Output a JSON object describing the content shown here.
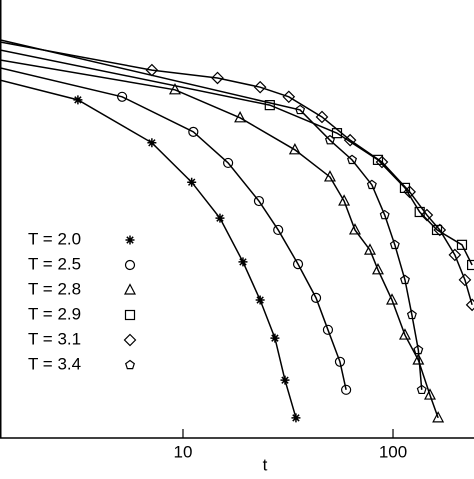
{
  "chart_data": {
    "type": "line",
    "x_label": "t",
    "xscale": "log",
    "xlim": [
      1.345,
      243
    ],
    "xticks": [
      10,
      100
    ],
    "ylim": [
      0,
      1
    ],
    "legend": "left",
    "series": [
      {
        "name": "T = 2.0",
        "marker": "star",
        "color": "#000000",
        "x": [
          1.345,
          3.16,
          7.11,
          11.0,
          15.0,
          19.3,
          23.3,
          27.4,
          30.6,
          34.5
        ],
        "values": [
          0.817,
          0.772,
          0.674,
          0.584,
          0.502,
          0.402,
          0.315,
          0.228,
          0.132,
          0.046
        ]
      },
      {
        "name": "T = 2.5",
        "marker": "circle",
        "color": "#000000",
        "x": [
          1.345,
          5.13,
          11.2,
          16.4,
          23.0,
          28.4,
          35.3,
          43.0,
          49.0,
          55.9,
          59.8
        ],
        "values": [
          0.845,
          0.779,
          0.699,
          0.628,
          0.541,
          0.475,
          0.397,
          0.32,
          0.247,
          0.174,
          0.11
        ]
      },
      {
        "name": "T = 2.8",
        "marker": "triangle",
        "color": "#000000",
        "x": [
          1.345,
          9.16,
          18.7,
          34.1,
          50.1,
          58.5,
          65.9,
          77.7,
          84.8,
          98.9,
          114,
          132,
          150,
          164
        ],
        "values": [
          0.863,
          0.795,
          0.731,
          0.658,
          0.596,
          0.541,
          0.475,
          0.429,
          0.384,
          0.315,
          0.235,
          0.178,
          0.098,
          0.046
        ]
      },
      {
        "name": "T = 2.9",
        "marker": "square",
        "color": "#000000",
        "x": [
          1.345,
          25.9,
          54.1,
          84.8,
          114,
          134,
          162,
          213,
          238
        ],
        "values": [
          0.886,
          0.76,
          0.696,
          0.635,
          0.571,
          0.516,
          0.475,
          0.441,
          0.395
        ]
      },
      {
        "name": "T = 3.1",
        "marker": "diamond",
        "color": "#000000",
        "x": [
          1.345,
          7.11,
          14.6,
          23.3,
          31.9,
          45.9,
          62.5,
          88.6,
          120,
          145,
          167,
          197,
          220,
          238
        ],
        "values": [
          0.904,
          0.84,
          0.822,
          0.801,
          0.779,
          0.733,
          0.68,
          0.63,
          0.562,
          0.509,
          0.475,
          0.418,
          0.361,
          0.304
        ]
      },
      {
        "name": "T = 3.4",
        "marker": "pentagon",
        "color": "#000000",
        "x": [
          1.345,
          36.1,
          50.1,
          63.8,
          79.3,
          91.3,
          102,
          114,
          123,
          132,
          137
        ],
        "values": [
          0.909,
          0.749,
          0.68,
          0.635,
          0.578,
          0.509,
          0.441,
          0.361,
          0.281,
          0.201,
          0.11
        ]
      }
    ]
  }
}
